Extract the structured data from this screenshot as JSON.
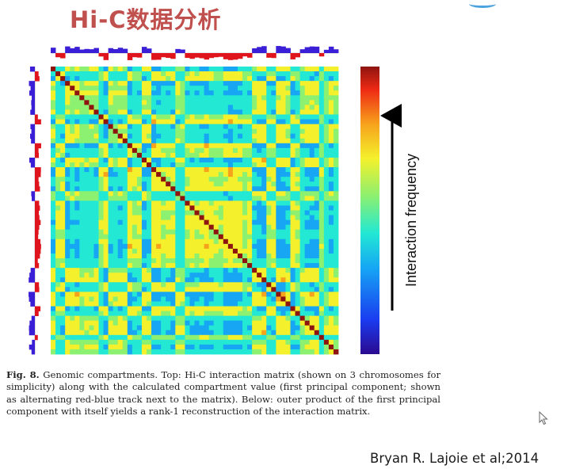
{
  "slide": {
    "title": "Hi-C数据分析",
    "citation": "Bryan R. Lajoie et al;2014"
  },
  "figure": {
    "colorbar_label": "Interaction frequency",
    "colormap": [
      "#2b0a8f",
      "#1a3cf0",
      "#16a6f4",
      "#22e8d4",
      "#8cf070",
      "#f4f12c",
      "#f7a21c",
      "#ee2a14",
      "#8e1410"
    ],
    "track_colors": {
      "positive": "#3a1fd6",
      "negative": "#e0141c"
    },
    "caption": {
      "label": "Fig. 8.",
      "text": "Genomic compartments. Top: Hi-C interaction matrix (shown on 3 chromosomes for simplicity) along with the calculated compartment value (first principal component; shown as alternating red-blue track next to the matrix). Below: outer product of the first principal component with itself yields a rank-1 reconstruction of the interaction matrix."
    }
  },
  "icons": {
    "cursor": "mouse-pointer-icon",
    "accent": "corner-accent-decoration"
  }
}
